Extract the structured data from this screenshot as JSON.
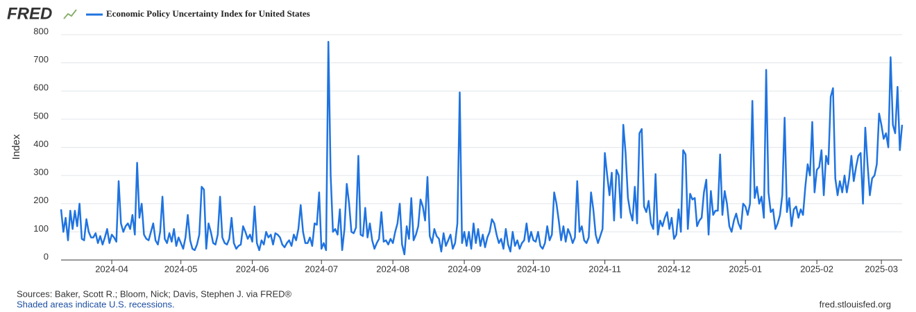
{
  "brand": "FRED",
  "chart_data": {
    "type": "line",
    "ylabel": "Index",
    "series": [
      {
        "name": "Economic Policy Uncertainty Index for United States",
        "color": "#1f73e0",
        "values": [
          180,
          100,
          150,
          70,
          175,
          110,
          175,
          120,
          200,
          75,
          70,
          145,
          100,
          80,
          80,
          95,
          60,
          85,
          55,
          80,
          110,
          60,
          90,
          80,
          65,
          280,
          130,
          100,
          120,
          130,
          110,
          160,
          90,
          345,
          150,
          200,
          90,
          75,
          70,
          100,
          130,
          70,
          55,
          100,
          225,
          75,
          60,
          95,
          65,
          110,
          50,
          80,
          60,
          40,
          80,
          160,
          70,
          40,
          35,
          55,
          90,
          260,
          250,
          40,
          130,
          100,
          60,
          55,
          90,
          225,
          80,
          60,
          55,
          75,
          150,
          60,
          40,
          50,
          55,
          120,
          100,
          75,
          90,
          65,
          190,
          60,
          35,
          70,
          55,
          100,
          80,
          90,
          55,
          95,
          90,
          80,
          55,
          45,
          60,
          70,
          50,
          90,
          70,
          110,
          195,
          100,
          60,
          60,
          80,
          50,
          130,
          125,
          240,
          40,
          60,
          35,
          775,
          300,
          100,
          110,
          90,
          180,
          35,
          110,
          270,
          200,
          100,
          95,
          115,
          370,
          90,
          85,
          185,
          80,
          130,
          70,
          40,
          60,
          75,
          170,
          65,
          70,
          55,
          75,
          60,
          100,
          130,
          200,
          55,
          20,
          120,
          75,
          220,
          70,
          90,
          120,
          215,
          190,
          140,
          295,
          85,
          60,
          110,
          85,
          75,
          30,
          95,
          50,
          70,
          90,
          40,
          60,
          130,
          595,
          60,
          100,
          50,
          100,
          40,
          130,
          60,
          110,
          50,
          90,
          45,
          80,
          100,
          145,
          130,
          90,
          60,
          75,
          40,
          110,
          55,
          30,
          100,
          50,
          70,
          40,
          60,
          70,
          130,
          65,
          100,
          70,
          65,
          100,
          50,
          40,
          60,
          120,
          70,
          90,
          240,
          200,
          140,
          70,
          120,
          65,
          110,
          90,
          60,
          80,
          280,
          100,
          120,
          70,
          60,
          80,
          240,
          180,
          90,
          60,
          85,
          110,
          380,
          300,
          230,
          310,
          140,
          320,
          300,
          150,
          480,
          380,
          220,
          170,
          140,
          260,
          130,
          450,
          465,
          190,
          170,
          210,
          130,
          110,
          305,
          90,
          140,
          120,
          150,
          170,
          110,
          150,
          75,
          90,
          180,
          100,
          390,
          375,
          110,
          235,
          215,
          220,
          120,
          140,
          150,
          240,
          285,
          90,
          245,
          160,
          175,
          175,
          375,
          160,
          245,
          200,
          120,
          100,
          140,
          165,
          130,
          110,
          200,
          190,
          160,
          200,
          565,
          220,
          260,
          200,
          225,
          150,
          675,
          240,
          170,
          180,
          110,
          130,
          160,
          230,
          505,
          170,
          220,
          120,
          180,
          190,
          150,
          180,
          160,
          260,
          340,
          300,
          490,
          240,
          320,
          330,
          390,
          230,
          370,
          340,
          580,
          610,
          290,
          230,
          280,
          240,
          300,
          240,
          290,
          370,
          280,
          330,
          370,
          380,
          200,
          470,
          340,
          230,
          290,
          300,
          340,
          520,
          480,
          430,
          450,
          400,
          720,
          480,
          450,
          615,
          390,
          480
        ]
      }
    ],
    "xlim": [
      0,
      365
    ],
    "xticks": [
      {
        "value": 22,
        "label": "2024-04"
      },
      {
        "value": 52,
        "label": "2024-05"
      },
      {
        "value": 83,
        "label": "2024-06"
      },
      {
        "value": 113,
        "label": "2024-07"
      },
      {
        "value": 144,
        "label": "2024-08"
      },
      {
        "value": 175,
        "label": "2024-09"
      },
      {
        "value": 205,
        "label": "2024-10"
      },
      {
        "value": 236,
        "label": "2024-11"
      },
      {
        "value": 266,
        "label": "2024-12"
      },
      {
        "value": 297,
        "label": "2025-01"
      },
      {
        "value": 328,
        "label": "2025-02"
      },
      {
        "value": 356,
        "label": "2025-03"
      }
    ],
    "ylim": [
      0,
      800
    ],
    "yticks": [
      0,
      100,
      200,
      300,
      400,
      500,
      600,
      700,
      800
    ],
    "grid": true,
    "source": "Sources: Baker, Scott R.; Bloom, Nick; Davis, Stephen J. via FRED®",
    "note": "Shaded areas indicate U.S. recessions.",
    "site": "fred.stlouisfed.org"
  }
}
